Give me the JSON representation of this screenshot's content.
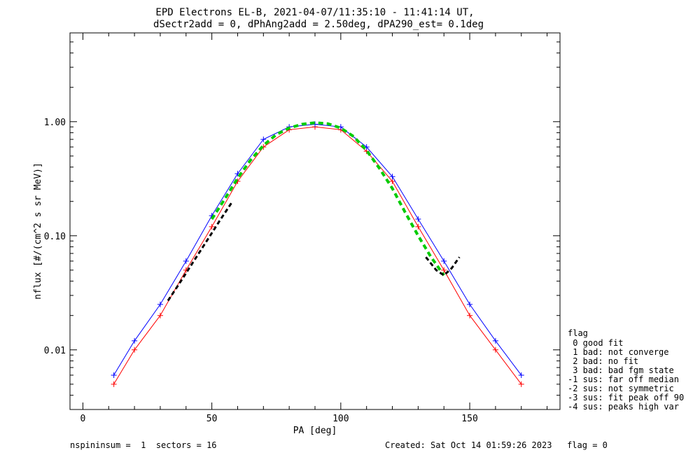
{
  "header": {
    "title_line1": "EPD Electrons EL-B, 2021-04-07/11:35:10 - 11:41:14 UT,",
    "title_line2": "dSectr2add = 0, dPhAng2add = 2.50deg, dPA290_est=   0.1deg"
  },
  "footer": {
    "left": "nspininsum =  1  sectors = 16",
    "right": "Created: Sat Oct 14 01:59:26 2023   flag = 0"
  },
  "legend": {
    "title": "flag",
    "items": [
      " 0 good fit",
      " 1 bad: not converge",
      " 2 bad: no fit",
      " 3 bad: bad fgm state",
      "-1 sus: far off median",
      "-2 sus: not symmetric",
      "-3 sus: fit peak off 90",
      "-4 sus: peaks high var"
    ]
  },
  "colors": {
    "series_red": "#ff0000",
    "series_blue": "#0000ff",
    "fit": "#00cc00",
    "symmetric_fit": "#000000",
    "axes": "#000000",
    "background": "#ffffff"
  },
  "chart_data": {
    "type": "line",
    "title": "EPD Electrons EL-B, 2021-04-07/11:35:10 - 11:41:14 UT,",
    "subtitle": "dSectr2add = 0, dPhAng2add = 2.50deg, dPA290_est=   0.1deg",
    "xlabel": "PA [deg]",
    "ylabel": "nflux [#/(cm^2 s sr MeV)]",
    "xlim": [
      -5,
      185
    ],
    "ylim": [
      0.003,
      6.0
    ],
    "yscale": "log",
    "xticks": [
      0,
      50,
      100,
      150
    ],
    "xticklabels": [
      "0",
      "50",
      "100",
      "150"
    ],
    "yticks": [
      0.01,
      0.1,
      1.0
    ],
    "yticklabels": [
      "0.01",
      "0.10",
      "1.00"
    ],
    "grid": false,
    "legend_position": "right",
    "series": [
      {
        "name": "",
        "color": "#ff0000",
        "x": [
          12,
          20,
          30,
          40,
          50,
          60,
          70,
          80,
          90,
          100,
          110,
          120,
          130,
          140,
          150,
          160,
          170
        ],
        "y": [
          0.005,
          0.01,
          0.02,
          0.05,
          0.12,
          0.3,
          0.6,
          0.85,
          0.9,
          0.85,
          0.55,
          0.3,
          0.12,
          0.05,
          0.02,
          0.01,
          0.005
        ]
      },
      {
        "name": "",
        "color": "#0000ff",
        "x": [
          12,
          20,
          30,
          40,
          50,
          60,
          70,
          80,
          90,
          100,
          110,
          120,
          130,
          140,
          150,
          160,
          170
        ],
        "y": [
          0.006,
          0.012,
          0.025,
          0.06,
          0.15,
          0.35,
          0.7,
          0.9,
          0.95,
          0.9,
          0.6,
          0.33,
          0.14,
          0.06,
          0.025,
          0.012,
          0.006
        ]
      }
    ],
    "fit": {
      "color": "#00cc00",
      "x": [
        50,
        55,
        60,
        65,
        70,
        75,
        80,
        85,
        90,
        95,
        100,
        105,
        110,
        115,
        120,
        125,
        130,
        135,
        140
      ],
      "y": [
        0.14,
        0.21,
        0.32,
        0.46,
        0.62,
        0.77,
        0.88,
        0.95,
        0.98,
        0.96,
        0.88,
        0.74,
        0.56,
        0.39,
        0.26,
        0.16,
        0.1,
        0.065,
        0.045
      ]
    },
    "symmetric_fit": {
      "color": "#000000",
      "left_x": [
        33,
        38,
        43,
        48,
        53,
        58
      ],
      "left_y": [
        0.027,
        0.04,
        0.06,
        0.09,
        0.135,
        0.2
      ],
      "right_x": [
        133,
        137,
        140,
        143,
        146
      ],
      "right_y": [
        0.065,
        0.05,
        0.045,
        0.052,
        0.065
      ]
    }
  }
}
